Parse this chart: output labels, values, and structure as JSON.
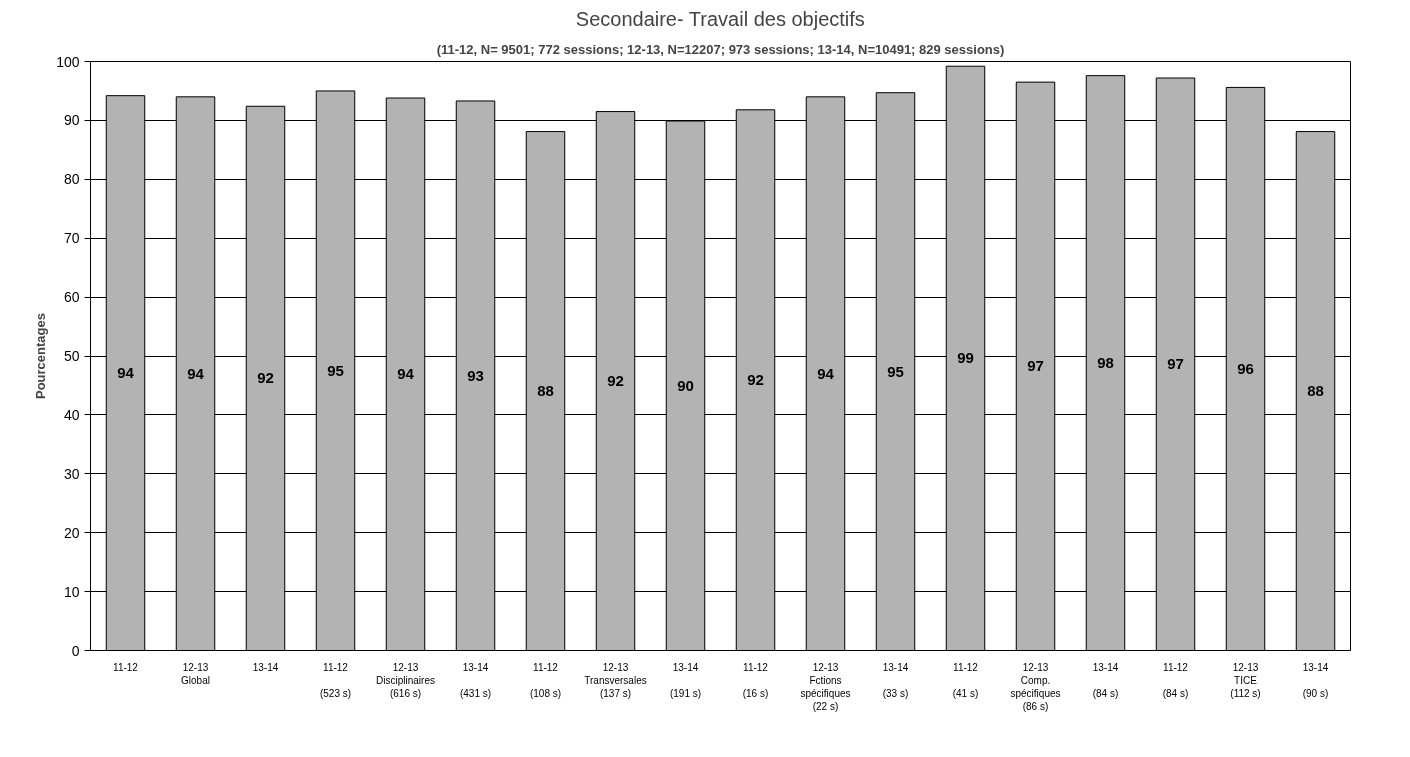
{
  "chart_data": {
    "type": "bar",
    "title": "Secondaire- Travail des objectifs",
    "subtitle": "(11-12, N= 9501; 772 sessions; 12-13, N=12207; 973 sessions; 13-14, N=10491; 829 sessions)",
    "ylabel": "Pourcentages",
    "categories": [
      "11-12",
      "12-13\nGlobal",
      "13-14",
      "11-12\n\n(523 s)",
      "12-13\nDisciplinaires\n(616 s)",
      "13-14\n\n(431 s)",
      "11-12\n\n(108 s)",
      "12-13\nTransversales\n(137 s)",
      "13-14\n\n(191 s)",
      "11-12\n\n(16 s)",
      "12-13\nFctions\nspécifiques\n(22 s)",
      "13-14\n\n(33 s)",
      "11-12\n\n(41 s)",
      "12-13\nComp.\nspécifiques\n(86 s)",
      "13-14\n\n(84 s)",
      "11-12\n\n(84 s)",
      "12-13\nTICE\n(112 s)",
      "13-14\n\n(90 s)"
    ],
    "values": [
      94.2,
      94.0,
      92.4,
      95.0,
      93.8,
      93.3,
      88.1,
      91.5,
      89.9,
      91.8,
      94.0,
      94.7,
      99.2,
      96.5,
      97.6,
      97.2,
      95.6,
      88.1
    ],
    "value_labels": [
      "94",
      "94",
      "92",
      "95",
      "94",
      "93",
      "88",
      "92",
      "90",
      "92",
      "94",
      "95",
      "99",
      "97",
      "98",
      "97",
      "96",
      "88"
    ],
    "color": "#b3b3b3",
    "ylim": [
      0,
      100
    ],
    "yticks": [
      0,
      10,
      20,
      30,
      40,
      50,
      60,
      70,
      80,
      90,
      100
    ],
    "grid": "y"
  }
}
